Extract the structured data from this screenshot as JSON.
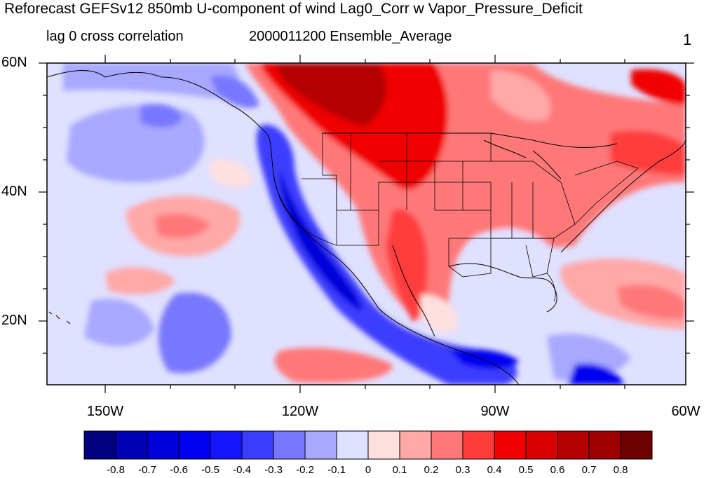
{
  "title": "Reforecast GEFSv12 850mb U-component of wind Lag0_Corr w Vapor_Pressure_Deficit",
  "subtitle_left": "lag 0 cross correlation",
  "subtitle_center": "2000011200 Ensemble_Average",
  "frame_number": "1",
  "lat_labels": [
    "60N",
    "40N",
    "20N"
  ],
  "lon_labels": [
    "150W",
    "120W",
    "90W",
    "60W"
  ],
  "colorbar": {
    "labels": [
      "-0.8",
      "-0.7",
      "-0.6",
      "-0.5",
      "-0.4",
      "-0.3",
      "-0.2",
      "-0.1",
      "0",
      "0.1",
      "0.2",
      "0.3",
      "0.4",
      "0.5",
      "0.6",
      "0.7",
      "0.8"
    ],
    "colors": [
      "#000080",
      "#0000b4",
      "#0000d8",
      "#0000f0",
      "#1414ff",
      "#3c3cff",
      "#7878ff",
      "#a8a8ff",
      "#e0e0ff",
      "#ffe0e0",
      "#ffa8a8",
      "#ff7878",
      "#ff3c3c",
      "#f00000",
      "#d80000",
      "#b40000",
      "#9c0000",
      "#6e0000"
    ]
  }
}
